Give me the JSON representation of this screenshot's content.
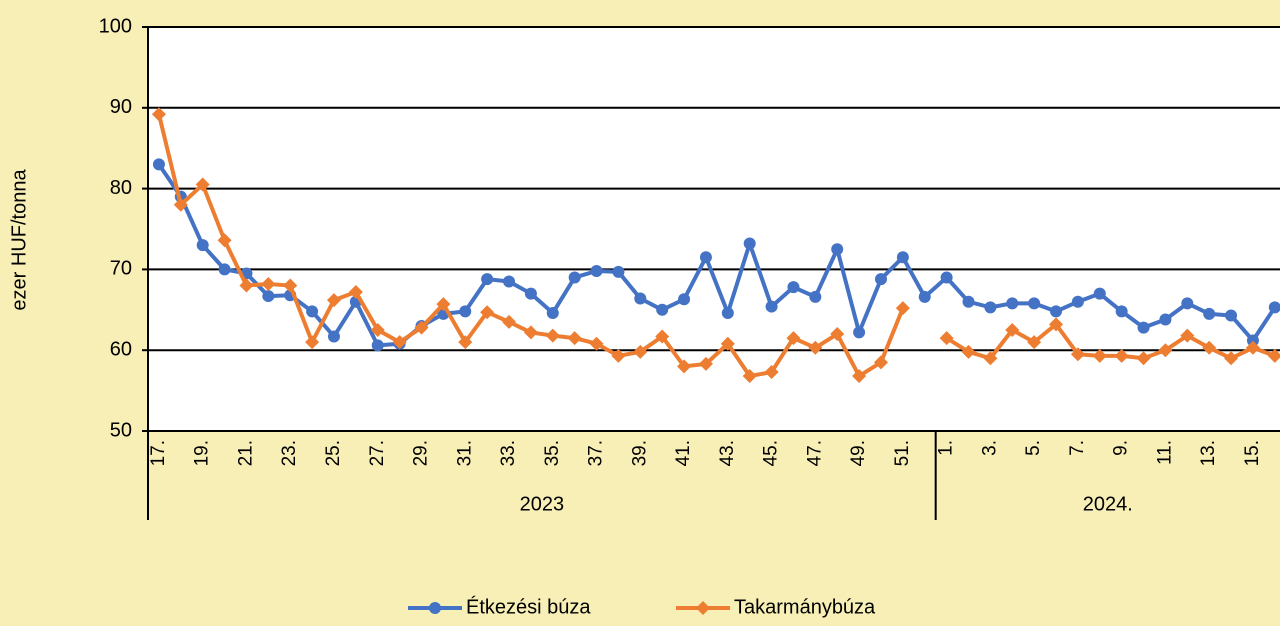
{
  "chart_data": {
    "type": "line",
    "y_label": "ezer HUF/tonna",
    "categories": [
      "17.",
      null,
      "19.",
      null,
      "21.",
      null,
      "23.",
      null,
      "25.",
      null,
      "27.",
      null,
      "29.",
      null,
      "31.",
      null,
      "33.",
      null,
      "35.",
      null,
      "37.",
      null,
      "39.",
      null,
      "41.",
      null,
      "43.",
      null,
      "45.",
      null,
      "47.",
      null,
      "49.",
      null,
      "51.",
      null,
      "1.",
      null,
      "3.",
      null,
      "5.",
      null,
      "7.",
      null,
      "9.",
      null,
      "11.",
      null,
      "13.",
      null,
      "15.",
      null
    ],
    "groups": [
      {
        "label": "2023",
        "span": 36
      },
      {
        "label": "2024.",
        "span": 16
      }
    ],
    "series": [
      {
        "name": "Étkezési búza",
        "color": "#4472c4",
        "marker": "circle",
        "values": [
          83,
          79,
          73,
          70,
          69.5,
          66.7,
          66.8,
          64.8,
          61.7,
          66,
          60.6,
          60.8,
          63,
          64.5,
          64.8,
          68.8,
          68.5,
          67,
          64.6,
          69,
          69.8,
          69.7,
          66.4,
          65,
          66.3,
          71.5,
          64.6,
          73.2,
          65.4,
          67.8,
          66.6,
          72.5,
          62.2,
          68.8,
          71.5,
          66.6,
          69,
          66,
          65.3,
          65.8,
          65.8,
          64.8,
          66,
          67,
          64.8,
          62.8,
          63.8,
          65.8,
          64.5,
          64.3,
          61.2,
          65.3
        ]
      },
      {
        "name": "Takarmánybúza",
        "color": "#ed7d31",
        "marker": "diamond",
        "values": [
          89.2,
          78,
          80.5,
          73.6,
          68,
          68.2,
          68,
          61,
          66.2,
          67.2,
          62.5,
          61,
          62.8,
          65.7,
          61,
          64.7,
          63.5,
          62.2,
          61.8,
          61.5,
          60.8,
          59.3,
          59.8,
          61.7,
          58,
          58.3,
          60.8,
          56.8,
          57.3,
          61.5,
          60.3,
          62,
          56.8,
          58.5,
          65.2,
          null,
          61.5,
          59.8,
          59,
          62.5,
          61,
          63.2,
          59.5,
          59.3,
          59.3,
          59,
          60,
          61.8,
          60.3,
          59,
          60.3,
          59.3
        ]
      }
    ],
    "ylim": [
      50,
      100
    ],
    "yticks": [
      50,
      60,
      70,
      80,
      90,
      100
    ],
    "grid": true,
    "legend": "bottom"
  }
}
